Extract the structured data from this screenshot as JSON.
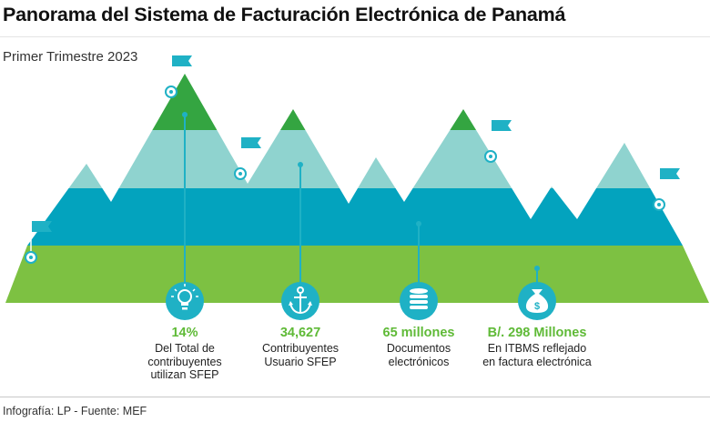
{
  "header": {
    "title": "Panorama del Sistema de Facturación Electrónica de Panamá",
    "subtitle": "Primer Trimestre 2023"
  },
  "colors": {
    "green_dark": "#34a541",
    "teal_light": "#8fd3cf",
    "blue": "#03a3be",
    "green_light": "#7dc142",
    "flag": "#1fb1c5",
    "stat_value": "#5fba37"
  },
  "stats": [
    {
      "icon": "lightbulb-icon",
      "value": "14%",
      "description": [
        "Del Total de",
        "contribuyentes",
        "utilizan SFEP"
      ]
    },
    {
      "icon": "anchor-icon",
      "value": "34,627",
      "description": [
        "Contribuyentes",
        "Usuario SFEP"
      ]
    },
    {
      "icon": "database-icon",
      "value": "65 millones",
      "description": [
        "Documentos",
        "electrónicos"
      ]
    },
    {
      "icon": "money-bag-icon",
      "value": "B/. 298 Millones",
      "description": [
        "En ITBMS reflejado",
        "en factura electrónica"
      ]
    }
  ],
  "footer": {
    "credit": "Infografía: LP - Fuente: MEF"
  }
}
